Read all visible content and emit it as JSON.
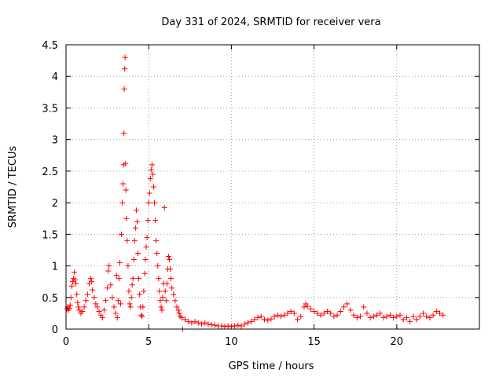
{
  "chart_data": {
    "type": "scatter",
    "title": "Day 331 of 2024, SRMTID for receiver vera",
    "xlabel": "GPS time / hours",
    "ylabel": "SRMTID / TECUs",
    "xlim": [
      0,
      25
    ],
    "ylim": [
      0,
      4.5
    ],
    "x_ticks": [
      0,
      5,
      10,
      15,
      20
    ],
    "x_tick_labels": [
      "0",
      "5",
      "10",
      "15",
      "20"
    ],
    "y_ticks": [
      0,
      0.5,
      1,
      1.5,
      2,
      2.5,
      3,
      3.5,
      4,
      4.5
    ],
    "y_tick_labels": [
      "0",
      "0.5",
      "1",
      "1.5",
      "2",
      "2.5",
      "3",
      "3.5",
      "4",
      "4.5"
    ],
    "grid": true,
    "marker": "+",
    "color": "#ff0000",
    "series": [
      {
        "name": "SRMTID",
        "points": [
          [
            0.05,
            0.32
          ],
          [
            0.1,
            0.35
          ],
          [
            0.15,
            0.3
          ],
          [
            0.2,
            0.33
          ],
          [
            0.25,
            0.38
          ],
          [
            0.3,
            0.5
          ],
          [
            0.35,
            0.68
          ],
          [
            0.4,
            0.75
          ],
          [
            0.45,
            0.8
          ],
          [
            0.5,
            0.9
          ],
          [
            0.55,
            0.78
          ],
          [
            0.6,
            0.72
          ],
          [
            0.65,
            0.55
          ],
          [
            0.7,
            0.42
          ],
          [
            0.75,
            0.35
          ],
          [
            0.8,
            0.3
          ],
          [
            0.9,
            0.25
          ],
          [
            1.0,
            0.28
          ],
          [
            1.1,
            0.35
          ],
          [
            1.2,
            0.45
          ],
          [
            1.3,
            0.55
          ],
          [
            1.4,
            0.72
          ],
          [
            1.5,
            0.8
          ],
          [
            1.55,
            0.75
          ],
          [
            1.6,
            0.62
          ],
          [
            1.7,
            0.5
          ],
          [
            1.8,
            0.4
          ],
          [
            1.9,
            0.35
          ],
          [
            2.0,
            0.28
          ],
          [
            2.1,
            0.22
          ],
          [
            2.2,
            0.18
          ],
          [
            2.3,
            0.3
          ],
          [
            2.4,
            0.45
          ],
          [
            2.5,
            0.65
          ],
          [
            2.55,
            0.92
          ],
          [
            2.6,
            1.0
          ],
          [
            2.7,
            0.7
          ],
          [
            2.8,
            0.5
          ],
          [
            2.9,
            0.35
          ],
          [
            3.0,
            0.25
          ],
          [
            3.05,
            0.85
          ],
          [
            3.1,
            0.18
          ],
          [
            3.15,
            0.45
          ],
          [
            3.2,
            0.8
          ],
          [
            3.25,
            1.05
          ],
          [
            3.3,
            0.4
          ],
          [
            3.35,
            1.5
          ],
          [
            3.4,
            2.0
          ],
          [
            3.45,
            2.3
          ],
          [
            3.48,
            2.6
          ],
          [
            3.5,
            3.1
          ],
          [
            3.52,
            3.8
          ],
          [
            3.55,
            4.12
          ],
          [
            3.57,
            4.3
          ],
          [
            3.6,
            2.62
          ],
          [
            3.62,
            2.2
          ],
          [
            3.65,
            1.75
          ],
          [
            3.7,
            1.4
          ],
          [
            3.75,
            1.0
          ],
          [
            3.8,
            0.6
          ],
          [
            3.85,
            0.4
          ],
          [
            3.9,
            0.35
          ],
          [
            3.95,
            0.5
          ],
          [
            4.0,
            0.7
          ],
          [
            4.05,
            0.8
          ],
          [
            4.1,
            1.1
          ],
          [
            4.15,
            1.4
          ],
          [
            4.2,
            1.6
          ],
          [
            4.25,
            1.88
          ],
          [
            4.3,
            1.7
          ],
          [
            4.35,
            1.2
          ],
          [
            4.4,
            0.8
          ],
          [
            4.45,
            0.55
          ],
          [
            4.5,
            0.35
          ],
          [
            4.55,
            0.22
          ],
          [
            4.6,
            0.2
          ],
          [
            4.65,
            0.35
          ],
          [
            4.7,
            0.6
          ],
          [
            4.75,
            0.88
          ],
          [
            4.8,
            1.1
          ],
          [
            4.85,
            1.3
          ],
          [
            4.9,
            1.45
          ],
          [
            4.95,
            1.72
          ],
          [
            5.0,
            2.0
          ],
          [
            5.05,
            2.15
          ],
          [
            5.1,
            2.38
          ],
          [
            5.15,
            2.52
          ],
          [
            5.2,
            2.6
          ],
          [
            5.25,
            2.45
          ],
          [
            5.3,
            2.25
          ],
          [
            5.35,
            2.0
          ],
          [
            5.4,
            1.72
          ],
          [
            5.45,
            1.4
          ],
          [
            5.5,
            1.2
          ],
          [
            5.55,
            1.0
          ],
          [
            5.6,
            0.8
          ],
          [
            5.65,
            0.6
          ],
          [
            5.7,
            0.45
          ],
          [
            5.75,
            0.35
          ],
          [
            5.8,
            0.3
          ],
          [
            5.85,
            0.5
          ],
          [
            5.9,
            0.72
          ],
          [
            5.95,
            1.92
          ],
          [
            6.0,
            0.6
          ],
          [
            6.05,
            0.45
          ],
          [
            6.1,
            0.72
          ],
          [
            6.15,
            0.95
          ],
          [
            6.2,
            1.15
          ],
          [
            6.25,
            1.1
          ],
          [
            6.3,
            0.95
          ],
          [
            6.35,
            0.8
          ],
          [
            6.4,
            0.65
          ],
          [
            6.5,
            0.55
          ],
          [
            6.6,
            0.45
          ],
          [
            6.7,
            0.35
          ],
          [
            6.8,
            0.3
          ],
          [
            6.85,
            0.25
          ],
          [
            6.9,
            0.2
          ],
          [
            7.0,
            0.18
          ],
          [
            7.05,
            0.0
          ],
          [
            7.2,
            0.15
          ],
          [
            7.4,
            0.12
          ],
          [
            7.6,
            0.1
          ],
          [
            7.8,
            0.12
          ],
          [
            8.0,
            0.1
          ],
          [
            8.2,
            0.08
          ],
          [
            8.4,
            0.1
          ],
          [
            8.6,
            0.08
          ],
          [
            8.8,
            0.07
          ],
          [
            9.0,
            0.06
          ],
          [
            9.2,
            0.05
          ],
          [
            9.4,
            0.05
          ],
          [
            9.6,
            0.04
          ],
          [
            9.8,
            0.05
          ],
          [
            10.0,
            0.04
          ],
          [
            10.2,
            0.05
          ],
          [
            10.4,
            0.06
          ],
          [
            10.6,
            0.05
          ],
          [
            10.8,
            0.08
          ],
          [
            11.0,
            0.1
          ],
          [
            11.2,
            0.12
          ],
          [
            11.4,
            0.15
          ],
          [
            11.6,
            0.18
          ],
          [
            11.8,
            0.2
          ],
          [
            12.0,
            0.15
          ],
          [
            12.2,
            0.14
          ],
          [
            12.4,
            0.16
          ],
          [
            12.6,
            0.2
          ],
          [
            12.8,
            0.22
          ],
          [
            13.0,
            0.2
          ],
          [
            13.2,
            0.22
          ],
          [
            13.4,
            0.25
          ],
          [
            13.6,
            0.28
          ],
          [
            13.8,
            0.25
          ],
          [
            14.0,
            0.15
          ],
          [
            14.2,
            0.2
          ],
          [
            14.4,
            0.35
          ],
          [
            14.5,
            0.4
          ],
          [
            14.6,
            0.36
          ],
          [
            14.8,
            0.32
          ],
          [
            15.0,
            0.28
          ],
          [
            15.2,
            0.25
          ],
          [
            15.4,
            0.22
          ],
          [
            15.6,
            0.25
          ],
          [
            15.8,
            0.28
          ],
          [
            16.0,
            0.25
          ],
          [
            16.2,
            0.2
          ],
          [
            16.4,
            0.22
          ],
          [
            16.6,
            0.28
          ],
          [
            16.8,
            0.35
          ],
          [
            17.0,
            0.4
          ],
          [
            17.2,
            0.3
          ],
          [
            17.4,
            0.22
          ],
          [
            17.6,
            0.18
          ],
          [
            17.8,
            0.2
          ],
          [
            18.0,
            0.35
          ],
          [
            18.2,
            0.25
          ],
          [
            18.4,
            0.18
          ],
          [
            18.6,
            0.2
          ],
          [
            18.8,
            0.22
          ],
          [
            19.0,
            0.25
          ],
          [
            19.2,
            0.18
          ],
          [
            19.4,
            0.2
          ],
          [
            19.6,
            0.22
          ],
          [
            19.8,
            0.18
          ],
          [
            20.0,
            0.2
          ],
          [
            20.2,
            0.22
          ],
          [
            20.4,
            0.15
          ],
          [
            20.6,
            0.18
          ],
          [
            20.8,
            0.12
          ],
          [
            21.0,
            0.2
          ],
          [
            21.2,
            0.15
          ],
          [
            21.4,
            0.2
          ],
          [
            21.6,
            0.25
          ],
          [
            21.8,
            0.2
          ],
          [
            22.0,
            0.18
          ],
          [
            22.2,
            0.22
          ],
          [
            22.4,
            0.28
          ],
          [
            22.6,
            0.25
          ],
          [
            22.8,
            0.22
          ]
        ]
      }
    ]
  }
}
